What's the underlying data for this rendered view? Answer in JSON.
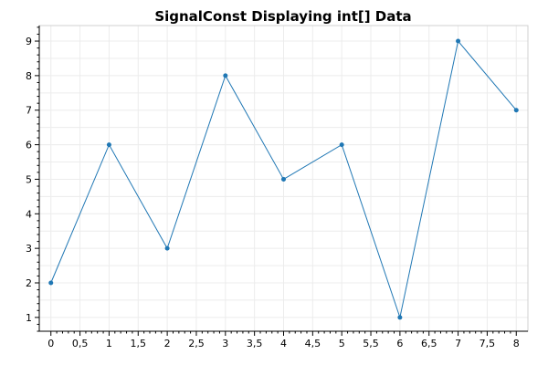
{
  "chart_data": {
    "type": "line",
    "title": "SignalConst Displaying int[] Data",
    "xlabel": "",
    "ylabel": "",
    "x": [
      0,
      1,
      2,
      3,
      4,
      5,
      6,
      7,
      8
    ],
    "series": [
      {
        "values": [
          2,
          6,
          3,
          8,
          5,
          6,
          1,
          9,
          7
        ],
        "color": "#1f77b4"
      }
    ],
    "xlim": [
      -0.2,
      8.2
    ],
    "ylim": [
      0.6,
      9.45
    ],
    "x_ticks": [
      0,
      0.5,
      1,
      1.5,
      2,
      2.5,
      3,
      3.5,
      4,
      4.5,
      5,
      5.5,
      6,
      6.5,
      7,
      7.5,
      8
    ],
    "x_tick_labels": [
      "0",
      "0,5",
      "1",
      "1,5",
      "2",
      "2,5",
      "3",
      "3,5",
      "4",
      "4,5",
      "5",
      "5,5",
      "6",
      "6,5",
      "7",
      "7,5",
      "8"
    ],
    "y_ticks": [
      1,
      2,
      3,
      4,
      5,
      6,
      7,
      8,
      9
    ],
    "y_tick_labels": [
      "1",
      "2",
      "3",
      "4",
      "5",
      "6",
      "7",
      "8",
      "9"
    ],
    "grid": true,
    "markers": true,
    "colors": {
      "line": "#1f77b4",
      "grid": "#ececec",
      "axis": "#000000"
    }
  }
}
